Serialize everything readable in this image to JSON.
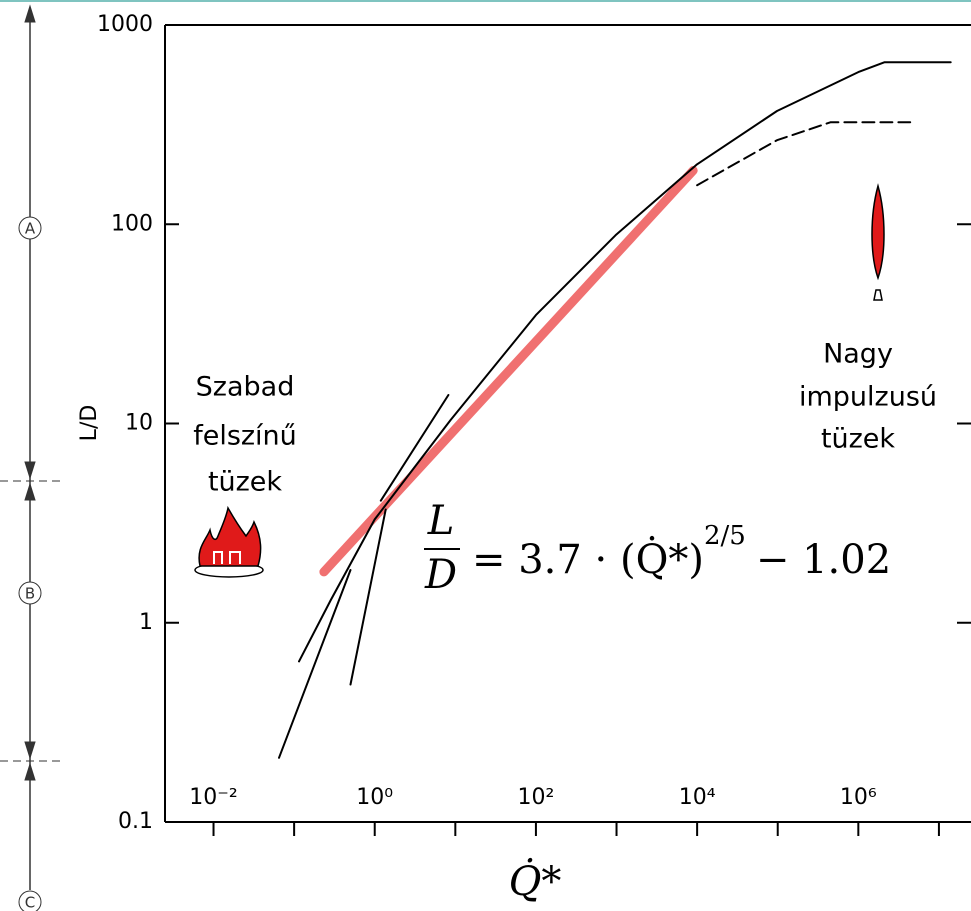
{
  "chart_data": {
    "type": "line",
    "xlabel": "Q̇*",
    "ylabel": "L/D",
    "log_x": true,
    "log_y": true,
    "xlim": [
      0.0025,
      25000000
    ],
    "ylim": [
      0.1,
      1000
    ],
    "xticks": [
      {
        "value": 0.01,
        "label": "10⁻²"
      },
      {
        "value": 1,
        "label": "10⁰"
      },
      {
        "value": 100,
        "label": "10²"
      },
      {
        "value": 10000,
        "label": "10⁴"
      },
      {
        "value": 1000000,
        "label": "10⁶"
      }
    ],
    "xticks_minor": [
      0.1,
      10,
      1000,
      100000,
      10000000
    ],
    "yticks": [
      0.1,
      1,
      10,
      100,
      1000
    ],
    "series": [
      {
        "color": "#000000",
        "style": "solid",
        "x": [
          0.115,
          0.285,
          1,
          8.7,
          100,
          970,
          10000,
          98000,
          1000000,
          2100000,
          14000000
        ],
        "values": [
          0.64,
          1.3,
          3.3,
          10.4,
          35,
          88,
          200,
          370,
          580,
          650,
          650
        ]
      },
      {
        "color": "#000000",
        "style": "dashed",
        "x": [
          10000,
          98000,
          450000,
          4400000
        ],
        "values": [
          157,
          264,
          325,
          325
        ]
      },
      {
        "color": "#000000",
        "style": "solid",
        "x": [
          0.5,
          1.37
        ],
        "values": [
          0.49,
          3.7
        ]
      },
      {
        "color": "#000000",
        "style": "solid",
        "x": [
          0.065,
          0.5
        ],
        "values": [
          0.21,
          1.84
        ]
      },
      {
        "color": "#000000",
        "style": "solid",
        "x": [
          1.19,
          8.2
        ],
        "values": [
          4.1,
          13.9
        ]
      },
      {
        "color": "#f07070",
        "style": "thick",
        "x": [
          0.234,
          8950
        ],
        "values": [
          1.8,
          186
        ]
      }
    ],
    "annotations": {
      "left": [
        "Szabad",
        "felszínű",
        "tüzek"
      ],
      "right": [
        "Nagy",
        "impulzusú",
        "tüzek"
      ]
    },
    "equation": {
      "numerator": "L",
      "denominator": "D",
      "body": "= 3.7 · (Q̇*)",
      "exponent": "2/5",
      "tail": "− 1.02"
    },
    "regions": [
      "A",
      "B",
      "C"
    ]
  }
}
